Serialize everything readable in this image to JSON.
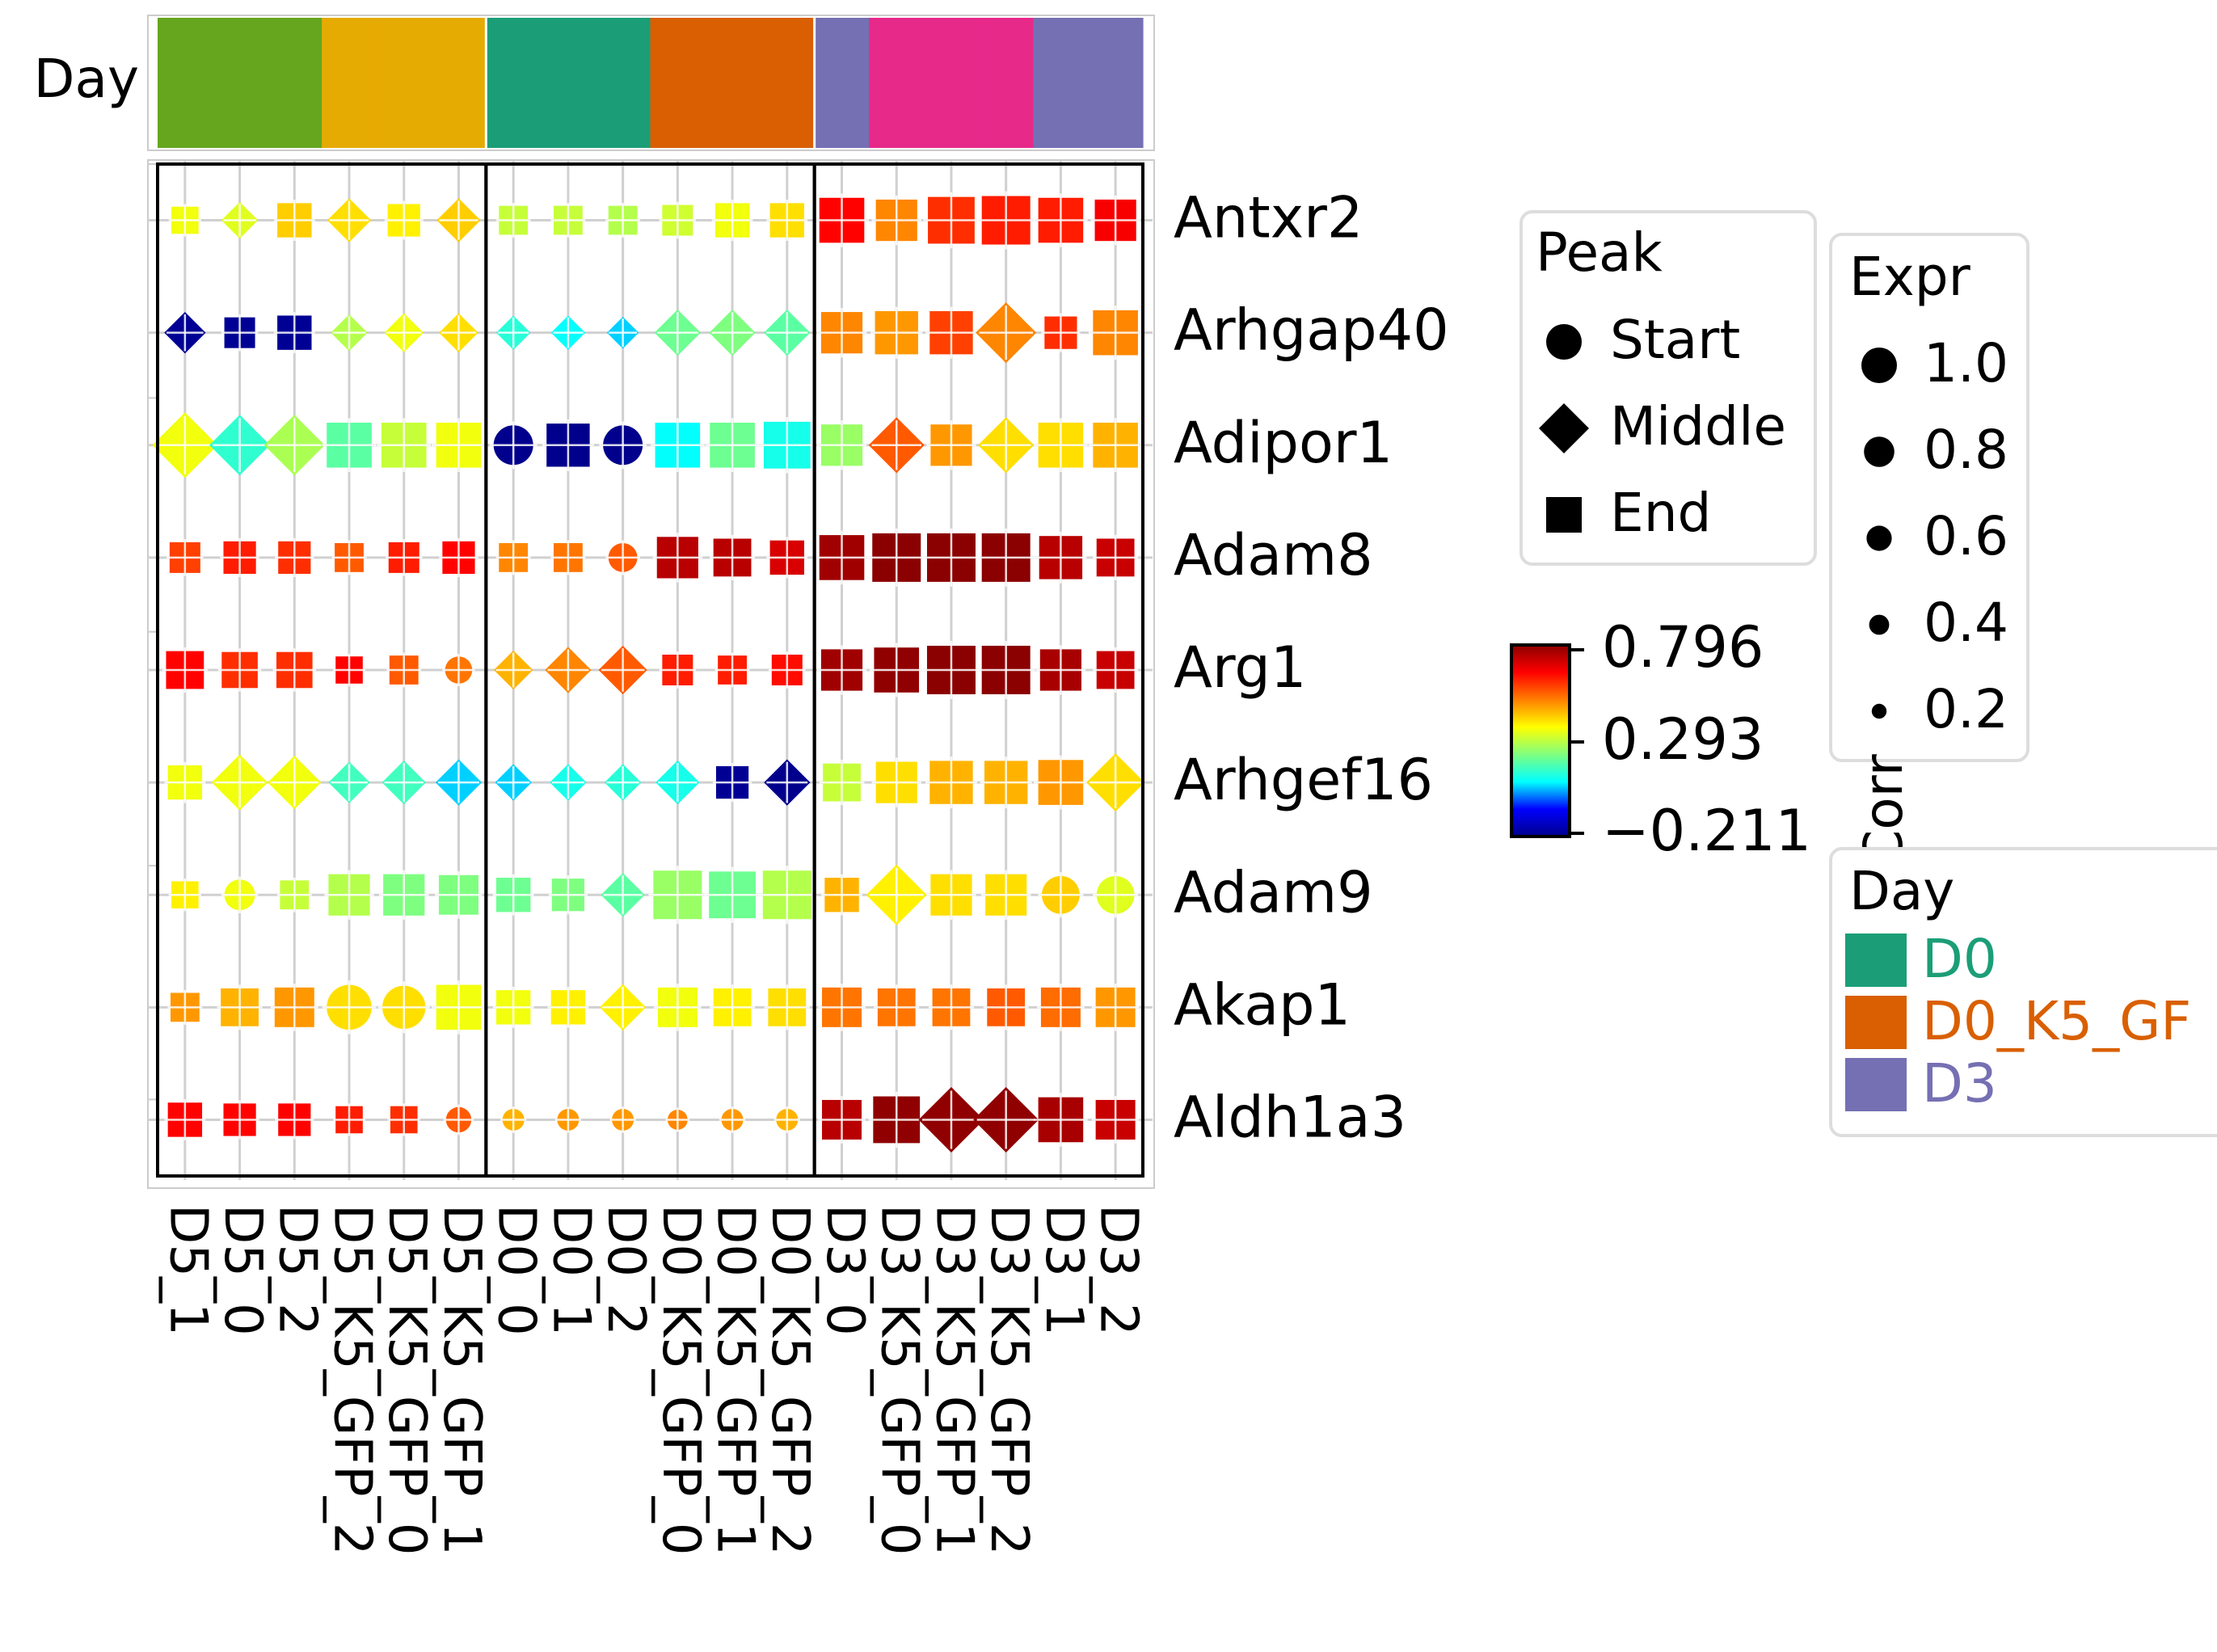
{
  "chart_data": {
    "type": "dotplot",
    "columns": [
      "D5_1",
      "D5_0",
      "D5_2",
      "D5_K5_GFP_2",
      "D5_K5_GFP_0",
      "D5_K5_GFP_1",
      "D0_0",
      "D0_1",
      "D0_2",
      "D0_K5_GFP_0",
      "D0_K5_GFP_1",
      "D0_K5_GFP_2",
      "D3_0",
      "D3_K5_GFP_0",
      "D3_K5_GFP_1",
      "D3_K5_GFP_2",
      "D3_1",
      "D3_2"
    ],
    "genes": [
      "Antxr2",
      "Arhgap40",
      "Adipor1",
      "Adam8",
      "Arg1",
      "Arhgef16",
      "Adam9",
      "Akap1",
      "Aldh1a3"
    ],
    "day_bar": {
      "label": "Day",
      "colors": [
        "#66a61e",
        "#66a61e",
        "#66a61e",
        "#e6ab02",
        "#e6ab02",
        "#e6ab02",
        "#1b9e77",
        "#1b9e77",
        "#1b9e77",
        "#d95f02",
        "#d95f02",
        "#d95f02",
        "#7570b3",
        "#e7298a",
        "#e7298a",
        "#e7298a",
        "#7570b3",
        "#7570b3"
      ]
    },
    "corr": [
      [
        0.35,
        0.33,
        0.42,
        0.4,
        0.38,
        0.42,
        0.3,
        0.3,
        0.28,
        0.31,
        0.35,
        0.4,
        0.65,
        0.5,
        0.6,
        0.62,
        0.62,
        0.66
      ],
      [
        -0.2,
        -0.2,
        -0.2,
        0.28,
        0.35,
        0.4,
        0.12,
        0.08,
        0.05,
        0.2,
        0.22,
        0.18,
        0.5,
        0.48,
        0.58,
        0.5,
        0.6,
        0.5
      ],
      [
        0.35,
        0.13,
        0.27,
        0.18,
        0.3,
        0.35,
        -0.21,
        -0.21,
        -0.21,
        0.08,
        0.2,
        0.1,
        0.25,
        0.55,
        0.48,
        0.4,
        0.4,
        0.45
      ],
      [
        0.58,
        0.62,
        0.6,
        0.55,
        0.62,
        0.65,
        0.5,
        0.52,
        0.55,
        0.74,
        0.74,
        0.7,
        0.77,
        0.8,
        0.8,
        0.8,
        0.74,
        0.72
      ],
      [
        0.65,
        0.6,
        0.6,
        0.65,
        0.55,
        0.52,
        0.45,
        0.5,
        0.55,
        0.62,
        0.62,
        0.64,
        0.77,
        0.79,
        0.8,
        0.8,
        0.76,
        0.72
      ],
      [
        0.35,
        0.35,
        0.35,
        0.15,
        0.15,
        0.05,
        0.05,
        0.1,
        0.12,
        0.1,
        -0.2,
        -0.21,
        0.3,
        0.4,
        0.45,
        0.45,
        0.48,
        0.4
      ],
      [
        0.38,
        0.35,
        0.3,
        0.28,
        0.22,
        0.22,
        0.2,
        0.22,
        0.18,
        0.25,
        0.2,
        0.28,
        0.45,
        0.38,
        0.4,
        0.4,
        0.42,
        0.33
      ],
      [
        0.48,
        0.45,
        0.48,
        0.4,
        0.4,
        0.35,
        0.35,
        0.38,
        0.38,
        0.35,
        0.38,
        0.4,
        0.52,
        0.52,
        0.52,
        0.55,
        0.53,
        0.48
      ],
      [
        0.65,
        0.65,
        0.65,
        0.62,
        0.6,
        0.55,
        0.45,
        0.48,
        0.48,
        0.5,
        0.48,
        0.45,
        0.74,
        0.79,
        0.79,
        0.79,
        0.76,
        0.72
      ]
    ],
    "expr": [
      [
        0.4,
        0.4,
        0.6,
        0.55,
        0.55,
        0.55,
        0.45,
        0.45,
        0.45,
        0.5,
        0.6,
        0.6,
        0.9,
        0.8,
        0.95,
        1.0,
        0.9,
        0.8
      ],
      [
        0.5,
        0.5,
        0.6,
        0.4,
        0.45,
        0.45,
        0.35,
        0.35,
        0.3,
        0.6,
        0.6,
        0.6,
        0.8,
        0.85,
        0.85,
        0.9,
        0.55,
        0.9
      ],
      [
        1.0,
        0.9,
        0.9,
        0.9,
        0.9,
        0.9,
        0.75,
        0.85,
        0.75,
        0.9,
        0.9,
        0.95,
        0.8,
        0.8,
        0.8,
        0.8,
        0.9,
        0.9
      ],
      [
        0.5,
        0.55,
        0.55,
        0.45,
        0.5,
        0.55,
        0.45,
        0.45,
        0.45,
        0.8,
        0.7,
        0.6,
        0.9,
        1.0,
        1.0,
        1.0,
        0.85,
        0.7
      ],
      [
        0.7,
        0.65,
        0.65,
        0.4,
        0.45,
        0.4,
        0.45,
        0.6,
        0.65,
        0.5,
        0.45,
        0.5,
        0.8,
        0.9,
        1.0,
        1.0,
        0.8,
        0.7
      ],
      [
        0.6,
        0.8,
        0.75,
        0.5,
        0.55,
        0.6,
        0.4,
        0.4,
        0.4,
        0.55,
        0.55,
        0.6,
        0.7,
        0.8,
        0.85,
        0.85,
        0.9,
        0.85
      ],
      [
        0.4,
        0.5,
        0.45,
        0.8,
        0.8,
        0.75,
        0.6,
        0.55,
        0.55,
        1.0,
        0.95,
        1.0,
        0.6,
        0.9,
        0.8,
        0.8,
        0.7,
        0.7
      ],
      [
        0.45,
        0.7,
        0.75,
        0.9,
        0.85,
        0.9,
        0.6,
        0.6,
        0.6,
        0.75,
        0.7,
        0.7,
        0.75,
        0.7,
        0.7,
        0.7,
        0.75,
        0.75
      ],
      [
        0.6,
        0.55,
        0.55,
        0.4,
        0.4,
        0.35,
        0.25,
        0.25,
        0.25,
        0.2,
        0.25,
        0.25,
        0.75,
        0.95,
        1.0,
        1.0,
        0.9,
        0.75
      ]
    ],
    "peak": [
      [
        "End",
        "Middle",
        "End",
        "Middle",
        "End",
        "Middle",
        "End",
        "End",
        "End",
        "End",
        "End",
        "End",
        "End",
        "End",
        "End",
        "End",
        "End",
        "End"
      ],
      [
        "Middle",
        "End",
        "End",
        "Middle",
        "Middle",
        "Middle",
        "Middle",
        "Middle",
        "Middle",
        "Middle",
        "Middle",
        "Middle",
        "End",
        "End",
        "End",
        "Middle",
        "End",
        "End"
      ],
      [
        "Middle",
        "Middle",
        "Middle",
        "End",
        "End",
        "End",
        "Start",
        "End",
        "Start",
        "End",
        "End",
        "End",
        "End",
        "Middle",
        "End",
        "Middle",
        "End",
        "End"
      ],
      [
        "End",
        "End",
        "End",
        "End",
        "End",
        "End",
        "End",
        "End",
        "Start",
        "End",
        "End",
        "End",
        "End",
        "End",
        "End",
        "End",
        "End",
        "End"
      ],
      [
        "End",
        "End",
        "End",
        "End",
        "End",
        "Start",
        "Middle",
        "Middle",
        "Middle",
        "End",
        "End",
        "End",
        "End",
        "End",
        "End",
        "End",
        "End",
        "End"
      ],
      [
        "End",
        "Middle",
        "Middle",
        "Middle",
        "Middle",
        "Middle",
        "Middle",
        "Middle",
        "Middle",
        "Middle",
        "End",
        "Middle",
        "End",
        "End",
        "End",
        "End",
        "End",
        "Middle"
      ],
      [
        "End",
        "Start",
        "End",
        "End",
        "End",
        "End",
        "End",
        "End",
        "Middle",
        "End",
        "End",
        "End",
        "End",
        "Middle",
        "End",
        "End",
        "Start",
        "Start"
      ],
      [
        "End",
        "End",
        "End",
        "Start",
        "Start",
        "End",
        "End",
        "End",
        "Middle",
        "End",
        "End",
        "End",
        "End",
        "End",
        "End",
        "End",
        "End",
        "End"
      ],
      [
        "End",
        "End",
        "End",
        "End",
        "End",
        "Start",
        "Start",
        "Start",
        "Start",
        "Start",
        "Start",
        "Start",
        "End",
        "End",
        "Middle",
        "Middle",
        "End",
        "End"
      ]
    ],
    "colorbar": {
      "title": "Corr",
      "min": -0.211,
      "max": 0.796,
      "ticks": [
        "0.796",
        "0.293",
        "−0.211"
      ],
      "palette": [
        "#00008b",
        "#0000ff",
        "#00ffff",
        "#7fff7f",
        "#ffff00",
        "#ff7f00",
        "#ff0000",
        "#8b0000"
      ]
    },
    "legend_peak": {
      "title": "Peak",
      "items": [
        {
          "label": "Start",
          "shape": "circle"
        },
        {
          "label": "Middle",
          "shape": "diamond"
        },
        {
          "label": "End",
          "shape": "square"
        }
      ]
    },
    "legend_expr": {
      "title": "Expr",
      "items": [
        "1.0",
        "0.8",
        "0.6",
        "0.4",
        "0.2"
      ],
      "values": [
        1.0,
        0.8,
        0.6,
        0.4,
        0.2
      ]
    },
    "legend_day": {
      "title": "Day",
      "items": [
        {
          "label": "D0",
          "color": "#1b9e77"
        },
        {
          "label": "D0_K5_GF",
          "color": "#d95f02"
        },
        {
          "label": "D3",
          "color": "#7570b3"
        }
      ]
    },
    "grid": true
  }
}
